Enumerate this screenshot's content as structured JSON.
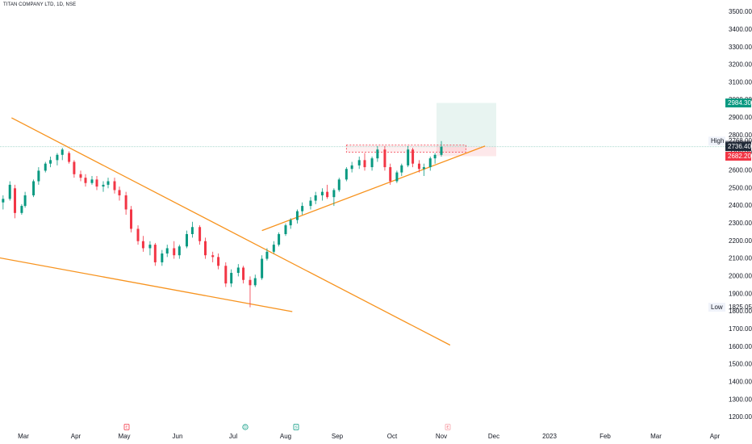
{
  "header": {
    "title": "TITAN COMPANY LTD, 1D, NSE"
  },
  "price_axis": {
    "ticks": [
      "3500.00",
      "3400.00",
      "3300.00",
      "3200.00",
      "3100.00",
      "3000.00",
      "2900.00",
      "2800.00",
      "2700.00",
      "2600.00",
      "2500.00",
      "2400.00",
      "2300.00",
      "2200.00",
      "2100.00",
      "2000.00",
      "1900.00",
      "1800.00",
      "1700.00",
      "1600.00",
      "1500.00",
      "1400.00",
      "1300.00",
      "1200.00"
    ]
  },
  "time_axis": {
    "labels": [
      "Mar",
      "Apr",
      "May",
      "Jun",
      "Jul",
      "Aug",
      "Sep",
      "Oct",
      "Nov",
      "Dec",
      "2023",
      "Feb",
      "Mar",
      "Apr"
    ]
  },
  "badges": {
    "target": "2984.30",
    "high_label": "High",
    "high_value": "2768.00",
    "last1": "2744.25",
    "last2": "2736.40",
    "stop": "2682.20",
    "low_label": "Low",
    "low_value": "1825.05"
  },
  "colors": {
    "up": "#089981",
    "down": "#f23645",
    "trendline": "#f7931e",
    "target_zone": "#e8f4f1",
    "stop_zone": "#fde8ea",
    "resistance": "#f23645",
    "price_line": "#9fd3c9"
  },
  "event_markers": [
    {
      "icon": "earnings-icon",
      "label": "E",
      "month_index": 2
    },
    {
      "icon": "dividend-icon",
      "label": "D",
      "month_index": 4
    },
    {
      "icon": "split-icon",
      "label": "S",
      "month_index": 5
    },
    {
      "icon": "earnings-icon",
      "label": "E",
      "month_index": 8
    }
  ],
  "chart_data": {
    "type": "candlestick",
    "title": "TITAN COMPANY LTD, 1D, NSE",
    "y_range": [
      1150,
      3560
    ],
    "x_labels": [
      "Mar",
      "Apr",
      "May",
      "Jun",
      "Jul",
      "Aug",
      "Sep",
      "Oct",
      "Nov",
      "Dec",
      "2023",
      "Feb",
      "Mar",
      "Apr"
    ],
    "high": 2768.0,
    "low": 1825.05,
    "last_price": 2736.4,
    "target": 2984.3,
    "stop": 2682.2,
    "trendlines": [
      {
        "name": "descending",
        "from": [
          "2022-02-22",
          2900
        ],
        "to": [
          "2022-11-06",
          1610
        ]
      },
      {
        "name": "lower",
        "from": [
          "2022-02-01",
          2130
        ],
        "to": [
          "2022-08-05",
          1800
        ]
      },
      {
        "name": "ascending",
        "from": [
          "2022-07-18",
          2260
        ],
        "to": [
          "2022-11-26",
          2740
        ]
      }
    ],
    "candles": [
      [
        "2022-02-01",
        2500,
        2520,
        2460,
        2490
      ],
      [
        "2022-02-04",
        2490,
        2510,
        2440,
        2460
      ],
      [
        "2022-02-08",
        2460,
        2480,
        2380,
        2400
      ],
      [
        "2022-02-11",
        2400,
        2500,
        2390,
        2480
      ],
      [
        "2022-02-14",
        2480,
        2490,
        2400,
        2420
      ],
      [
        "2022-02-17",
        2420,
        2460,
        2380,
        2440
      ],
      [
        "2022-02-21",
        2440,
        2540,
        2430,
        2520
      ],
      [
        "2022-02-24",
        2500,
        2520,
        2330,
        2360
      ],
      [
        "2022-02-28",
        2360,
        2410,
        2350,
        2400
      ],
      [
        "2022-03-02",
        2400,
        2480,
        2390,
        2460
      ],
      [
        "2022-03-07",
        2460,
        2550,
        2450,
        2540
      ],
      [
        "2022-03-10",
        2540,
        2620,
        2520,
        2600
      ],
      [
        "2022-03-14",
        2600,
        2650,
        2590,
        2640
      ],
      [
        "2022-03-17",
        2640,
        2680,
        2620,
        2660
      ],
      [
        "2022-03-21",
        2660,
        2700,
        2630,
        2690
      ],
      [
        "2022-03-24",
        2690,
        2730,
        2660,
        2720
      ],
      [
        "2022-03-28",
        2700,
        2710,
        2640,
        2650
      ],
      [
        "2022-03-31",
        2650,
        2660,
        2560,
        2580
      ],
      [
        "2022-04-04",
        2580,
        2600,
        2540,
        2560
      ],
      [
        "2022-04-07",
        2560,
        2580,
        2510,
        2530
      ],
      [
        "2022-04-11",
        2530,
        2570,
        2520,
        2550
      ],
      [
        "2022-04-14",
        2550,
        2570,
        2490,
        2510
      ],
      [
        "2022-04-18",
        2510,
        2540,
        2480,
        2520
      ],
      [
        "2022-04-21",
        2520,
        2560,
        2500,
        2540
      ],
      [
        "2022-04-25",
        2540,
        2560,
        2470,
        2490
      ],
      [
        "2022-04-28",
        2490,
        2510,
        2430,
        2460
      ],
      [
        "2022-05-02",
        2460,
        2480,
        2350,
        2380
      ],
      [
        "2022-05-05",
        2380,
        2400,
        2250,
        2270
      ],
      [
        "2022-05-09",
        2270,
        2290,
        2180,
        2200
      ],
      [
        "2022-05-12",
        2200,
        2230,
        2140,
        2160
      ],
      [
        "2022-05-16",
        2160,
        2200,
        2120,
        2180
      ],
      [
        "2022-05-19",
        2180,
        2190,
        2060,
        2080
      ],
      [
        "2022-05-23",
        2080,
        2150,
        2060,
        2130
      ],
      [
        "2022-05-26",
        2130,
        2180,
        2110,
        2160
      ],
      [
        "2022-05-30",
        2160,
        2200,
        2100,
        2120
      ],
      [
        "2022-06-02",
        2120,
        2180,
        2100,
        2170
      ],
      [
        "2022-06-06",
        2170,
        2260,
        2160,
        2240
      ],
      [
        "2022-06-09",
        2240,
        2310,
        2220,
        2280
      ],
      [
        "2022-06-13",
        2280,
        2290,
        2180,
        2200
      ],
      [
        "2022-06-16",
        2200,
        2220,
        2100,
        2120
      ],
      [
        "2022-06-20",
        2120,
        2140,
        2080,
        2110
      ],
      [
        "2022-06-23",
        2110,
        2130,
        2040,
        2060
      ],
      [
        "2022-06-27",
        2060,
        2080,
        1940,
        1960
      ],
      [
        "2022-06-30",
        1960,
        2040,
        1940,
        2020
      ],
      [
        "2022-07-04",
        2020,
        2070,
        2000,
        2050
      ],
      [
        "2022-07-07",
        2050,
        2060,
        1960,
        1980
      ],
      [
        "2022-07-11",
        1980,
        2000,
        1825,
        1950
      ],
      [
        "2022-07-14",
        1950,
        2010,
        1940,
        1990
      ],
      [
        "2022-07-18",
        1990,
        2120,
        1980,
        2100
      ],
      [
        "2022-07-21",
        2100,
        2160,
        2090,
        2140
      ],
      [
        "2022-07-25",
        2140,
        2200,
        2130,
        2180
      ],
      [
        "2022-07-28",
        2180,
        2250,
        2170,
        2240
      ],
      [
        "2022-08-01",
        2240,
        2300,
        2230,
        2290
      ],
      [
        "2022-08-04",
        2290,
        2330,
        2270,
        2320
      ],
      [
        "2022-08-08",
        2320,
        2380,
        2300,
        2370
      ],
      [
        "2022-08-11",
        2370,
        2420,
        2350,
        2400
      ],
      [
        "2022-08-16",
        2400,
        2450,
        2380,
        2430
      ],
      [
        "2022-08-19",
        2430,
        2480,
        2410,
        2460
      ],
      [
        "2022-08-23",
        2460,
        2500,
        2430,
        2480
      ],
      [
        "2022-08-26",
        2480,
        2520,
        2440,
        2450
      ],
      [
        "2022-08-30",
        2450,
        2500,
        2400,
        2490
      ],
      [
        "2022-09-02",
        2490,
        2560,
        2480,
        2550
      ],
      [
        "2022-09-06",
        2550,
        2620,
        2540,
        2610
      ],
      [
        "2022-09-09",
        2610,
        2650,
        2590,
        2630
      ],
      [
        "2022-09-13",
        2630,
        2680,
        2610,
        2660
      ],
      [
        "2022-09-16",
        2660,
        2700,
        2600,
        2620
      ],
      [
        "2022-09-20",
        2620,
        2680,
        2600,
        2670
      ],
      [
        "2022-09-23",
        2670,
        2740,
        2650,
        2720
      ],
      [
        "2022-09-27",
        2720,
        2740,
        2600,
        2620
      ],
      [
        "2022-09-30",
        2620,
        2640,
        2520,
        2540
      ],
      [
        "2022-10-04",
        2540,
        2600,
        2530,
        2590
      ],
      [
        "2022-10-07",
        2590,
        2640,
        2570,
        2630
      ],
      [
        "2022-10-11",
        2630,
        2740,
        2620,
        2720
      ],
      [
        "2022-10-14",
        2720,
        2730,
        2620,
        2640
      ],
      [
        "2022-10-18",
        2640,
        2660,
        2590,
        2610
      ],
      [
        "2022-10-21",
        2610,
        2640,
        2570,
        2620
      ],
      [
        "2022-10-25",
        2620,
        2680,
        2600,
        2670
      ],
      [
        "2022-10-28",
        2670,
        2700,
        2640,
        2690
      ],
      [
        "2022-11-01",
        2690,
        2768,
        2680,
        2736.4
      ]
    ]
  }
}
